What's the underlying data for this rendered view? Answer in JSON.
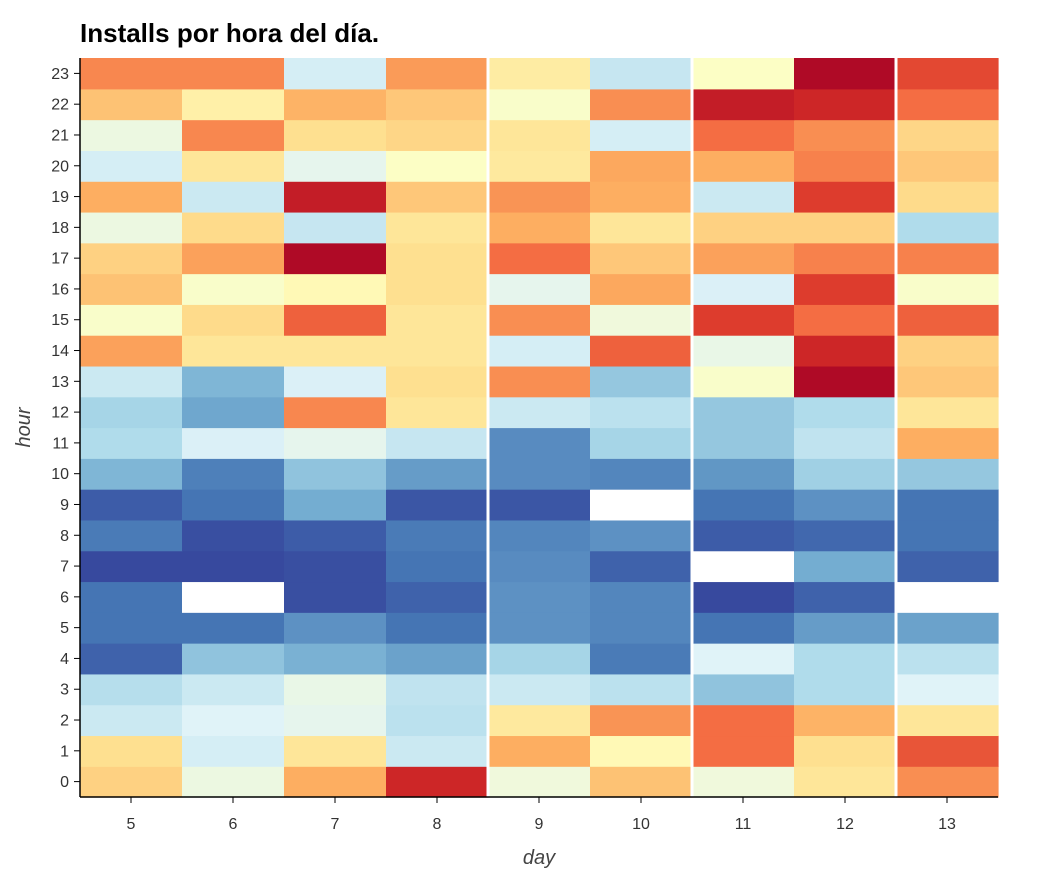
{
  "chart_data": {
    "type": "heatmap",
    "title": "Installs por hora del día.",
    "xlabel": "day",
    "ylabel": "hour",
    "x": [
      "5",
      "6",
      "7",
      "8",
      "9",
      "10",
      "11",
      "12",
      "13"
    ],
    "y": [
      "0",
      "1",
      "2",
      "3",
      "4",
      "5",
      "6",
      "7",
      "8",
      "9",
      "10",
      "11",
      "12",
      "13",
      "14",
      "15",
      "16",
      "17",
      "18",
      "19",
      "20",
      "21",
      "22",
      "23"
    ],
    "colormap": "RdYlBu_r (blue = low, red = high)",
    "missing_color": "#ffffff",
    "z": [
      [
        0.63,
        0.44,
        0.7,
        0.92,
        0.45,
        0.66,
        0.45,
        0.58,
        0.75
      ],
      [
        0.6,
        0.38,
        0.58,
        0.36,
        0.7,
        0.52,
        0.8,
        0.6,
        0.84
      ],
      [
        0.36,
        0.4,
        0.42,
        0.33,
        0.57,
        0.74,
        0.8,
        0.69,
        0.58
      ],
      [
        0.32,
        0.36,
        0.43,
        0.34,
        0.36,
        0.33,
        0.25,
        0.31,
        0.4
      ],
      [
        0.07,
        0.25,
        0.21,
        0.18,
        0.29,
        0.11,
        0.4,
        0.31,
        0.33
      ],
      [
        0.1,
        0.1,
        0.15,
        0.1,
        0.15,
        0.13,
        0.1,
        0.17,
        0.18
      ],
      [
        0.1,
        null,
        0.04,
        0.07,
        0.15,
        0.13,
        0.03,
        0.07,
        null
      ],
      [
        0.03,
        0.03,
        0.04,
        0.1,
        0.14,
        0.07,
        null,
        0.2,
        0.07
      ],
      [
        0.11,
        0.04,
        0.06,
        0.11,
        0.13,
        0.15,
        0.06,
        0.08,
        0.1
      ],
      [
        0.06,
        0.1,
        0.2,
        0.05,
        0.05,
        null,
        0.1,
        0.15,
        0.1
      ],
      [
        0.22,
        0.12,
        0.25,
        0.17,
        0.14,
        0.13,
        0.16,
        0.28,
        0.26
      ],
      [
        0.31,
        0.39,
        0.42,
        0.35,
        0.14,
        0.29,
        0.26,
        0.34,
        0.7
      ],
      [
        0.29,
        0.19,
        0.76,
        0.58,
        0.36,
        0.33,
        0.26,
        0.31,
        0.58
      ],
      [
        0.36,
        0.22,
        0.39,
        0.6,
        0.75,
        0.26,
        0.48,
        0.98,
        0.65
      ],
      [
        0.72,
        0.58,
        0.58,
        0.58,
        0.38,
        0.82,
        0.43,
        0.92,
        0.63
      ],
      [
        0.48,
        0.61,
        0.82,
        0.58,
        0.75,
        0.45,
        0.88,
        0.8,
        0.82
      ],
      [
        0.66,
        0.48,
        0.52,
        0.6,
        0.42,
        0.71,
        0.39,
        0.88,
        0.48
      ],
      [
        0.63,
        0.72,
        0.98,
        0.6,
        0.8,
        0.65,
        0.72,
        0.77,
        0.77
      ],
      [
        0.44,
        0.61,
        0.35,
        0.58,
        0.7,
        0.58,
        0.63,
        0.63,
        0.31
      ],
      [
        0.7,
        0.36,
        0.94,
        0.65,
        0.74,
        0.7,
        0.36,
        0.88,
        0.61
      ],
      [
        0.38,
        0.58,
        0.42,
        0.49,
        0.57,
        0.71,
        0.7,
        0.77,
        0.65
      ],
      [
        0.44,
        0.76,
        0.6,
        0.62,
        0.58,
        0.38,
        0.8,
        0.75,
        0.62
      ],
      [
        0.66,
        0.55,
        0.69,
        0.65,
        0.48,
        0.75,
        0.94,
        0.92,
        0.8
      ],
      [
        0.76,
        0.76,
        0.38,
        0.73,
        0.56,
        0.35,
        0.49,
        0.98,
        0.86
      ]
    ]
  }
}
